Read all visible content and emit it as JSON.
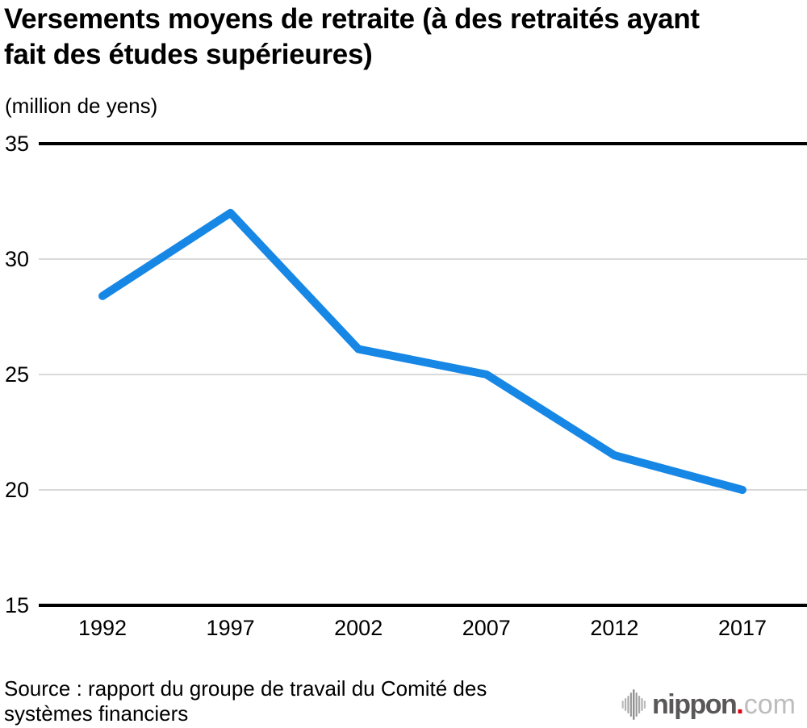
{
  "header": {
    "title": "Versements moyens de retraite (à des retraités ayant\nfait des études supérieures)",
    "unit_label": "(million de yens)"
  },
  "chart_data": {
    "type": "line",
    "title": "Versements moyens de retraite (à des retraités ayant fait des études supérieures)",
    "ylabel": "(million de yens)",
    "xlabel": "",
    "categories": [
      "1992",
      "1997",
      "2002",
      "2007",
      "2012",
      "2017"
    ],
    "values": [
      28.4,
      32.0,
      26.1,
      25.0,
      21.5,
      20.0
    ],
    "ylim": [
      15,
      35
    ],
    "yticks": [
      35,
      30,
      25,
      20,
      15
    ],
    "grid": "horizontal",
    "legend": "none",
    "line_color": "#1787e6",
    "axis_color": "#000000",
    "grid_color": "#d9d9d9"
  },
  "footer": {
    "source": "Source : rapport du groupe de travail du Comité des\nsystèmes financiers",
    "logo": {
      "name": "nippon",
      "dot": ".",
      "tld": "com",
      "icon": "soundwave-icon",
      "brand_color": "#595757",
      "dot_color": "#e60012",
      "tld_color": "#bdbdbd"
    }
  }
}
